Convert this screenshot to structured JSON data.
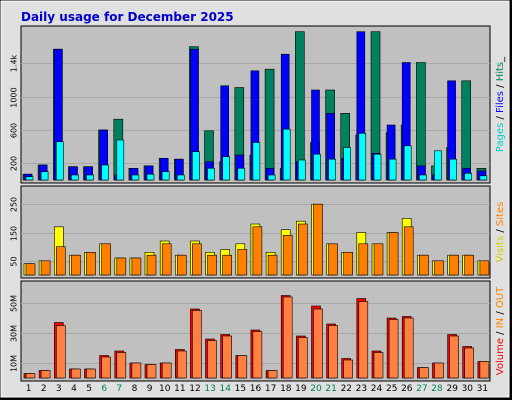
{
  "chart_data": {
    "type": "bar",
    "title": "Daily usage for December 2025",
    "days": [
      "1",
      "2",
      "3",
      "4",
      "5",
      "6",
      "7",
      "8",
      "9",
      "10",
      "11",
      "12",
      "13",
      "14",
      "15",
      "16",
      "17",
      "18",
      "19",
      "20",
      "21",
      "22",
      "23",
      "24",
      "25",
      "26",
      "27",
      "28",
      "29",
      "30",
      "31"
    ],
    "weekend_days": [
      6,
      7,
      13,
      14,
      20,
      21,
      27,
      28
    ],
    "colors": {
      "title": "#0000cc",
      "plot_bg": "#c0c0c0",
      "frame_bg": "#e0e0e0",
      "hits": "#00805c",
      "files": "#0000ff",
      "pages": "#00ffff",
      "visits": "#ffff00",
      "sites": "#ff8000",
      "kbytes_in": "#ff0000",
      "kbytes_out": "#ff8040",
      "weekend_label": "#00805c",
      "weekday_label": "#000000"
    },
    "panels": [
      {
        "id": "hits",
        "ylabel_parts": [
          {
            "text": "Pages",
            "color": "#00cccc"
          },
          {
            "text": " / ",
            "color": "#000000"
          },
          {
            "text": "Files",
            "color": "#0000ff"
          },
          {
            "text": " / ",
            "color": "#000000"
          },
          {
            "text": "Hits",
            "color": "#00805c"
          },
          {
            "text": "_",
            "color": "#000000"
          }
        ],
        "ticks": [
          "200",
          "600",
          "1000",
          "1.4k"
        ],
        "tick_values": [
          200,
          600,
          1000,
          1400
        ],
        "ylim": [
          0,
          1800
        ],
        "series": [
          {
            "name": "Hits",
            "color": "#00805c",
            "values": [
              70,
              180,
              1570,
              160,
              160,
              600,
              730,
              140,
              170,
              260,
              250,
              1600,
              590,
              220,
              1110,
              300,
              1330,
              140,
              1780,
              450,
              1080,
              800,
              540,
              1780,
              570,
              660,
              1410,
              170,
              390,
              1190,
              140
            ]
          },
          {
            "name": "Files",
            "color": "#0000ff",
            "values": [
              70,
              180,
              1570,
              160,
              160,
              600,
              60,
              140,
              170,
              260,
              250,
              1570,
              220,
              1130,
              300,
              1310,
              140,
              1510,
              220,
              1080,
              800,
              260,
              1780,
              320,
              660,
              1410,
              170,
              60,
              1190,
              140,
              110
            ]
          },
          {
            "name": "Pages",
            "color": "#00ffff",
            "values": [
              40,
              100,
              460,
              60,
              60,
              180,
              480,
              60,
              70,
              100,
              60,
              340,
              140,
              280,
              140,
              450,
              60,
              610,
              240,
              310,
              250,
              390,
              560,
              310,
              250,
              410,
              60,
              350,
              250,
              80,
              50
            ]
          }
        ]
      },
      {
        "id": "visits",
        "ylabel_parts": [
          {
            "text": "Visits",
            "color": "#cccc00"
          },
          {
            "text": " / ",
            "color": "#000000"
          },
          {
            "text": "Sites",
            "color": "#ff8000"
          }
        ],
        "ticks": [
          "50",
          "150",
          "250"
        ],
        "tick_values": [
          50,
          150,
          250
        ],
        "ylim": [
          0,
          300
        ],
        "series": [
          {
            "name": "Visits",
            "color": "#ffff00",
            "values": [
              40,
              50,
              170,
              70,
              80,
              110,
              60,
              60,
              80,
              120,
              70,
              120,
              80,
              90,
              110,
              180,
              80,
              160,
              190,
              250,
              110,
              80,
              150,
              110,
              150,
              200,
              70,
              50,
              70,
              70,
              50
            ]
          },
          {
            "name": "Sites",
            "color": "#ff8000",
            "values": [
              40,
              50,
              100,
              70,
              80,
              110,
              60,
              60,
              70,
              110,
              70,
              110,
              70,
              70,
              90,
              170,
              70,
              140,
              180,
              250,
              110,
              80,
              110,
              110,
              150,
              170,
              70,
              50,
              70,
              70,
              50
            ]
          }
        ]
      },
      {
        "id": "volume",
        "ylabel_parts": [
          {
            "text": "Volume",
            "color": "#ff0000"
          },
          {
            "text": " / ",
            "color": "#000000"
          },
          {
            "text": "IN",
            "color": "#ff8000"
          },
          {
            "text": " / ",
            "color": "#000000"
          },
          {
            "text": "OUT",
            "color": "#ff8000"
          }
        ],
        "ticks": [
          "10M",
          "30M",
          "50M"
        ],
        "tick_values": [
          10,
          30,
          50
        ],
        "ylim": [
          0,
          62
        ],
        "unit": "M",
        "series": [
          {
            "name": "IN",
            "color": "#ff0000",
            "values": [
              3,
              5,
              37,
              6,
              6,
              15,
              18,
              10,
              9,
              10,
              19,
              46,
              26,
              29,
              15,
              32,
              5,
              55,
              28,
              48,
              36,
              13,
              53,
              18,
              40,
              41,
              7,
              10,
              29,
              21,
              11
            ]
          },
          {
            "name": "OUT",
            "color": "#ff8040",
            "values": [
              3,
              5,
              35,
              6,
              6,
              14,
              17,
              10,
              9,
              10,
              18,
              45,
              25,
              28,
              15,
              31,
              5,
              54,
              27,
              46,
              35,
              12,
              51,
              17,
              39,
              40,
              7,
              10,
              28,
              20,
              11
            ]
          }
        ]
      }
    ]
  }
}
